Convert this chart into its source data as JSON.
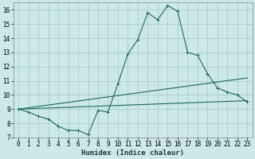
{
  "xlabel": "Humidex (Indice chaleur)",
  "xlim": [
    -0.5,
    23.5
  ],
  "ylim": [
    7,
    16.5
  ],
  "yticks": [
    7,
    8,
    9,
    10,
    11,
    12,
    13,
    14,
    15,
    16
  ],
  "xticks": [
    0,
    1,
    2,
    3,
    4,
    5,
    6,
    7,
    8,
    9,
    10,
    11,
    12,
    13,
    14,
    15,
    16,
    17,
    18,
    19,
    20,
    21,
    22,
    23
  ],
  "bg_color": "#cde8e8",
  "grid_color": "#aacccc",
  "line_color": "#1a6a5a",
  "line1_x": [
    0,
    1,
    2,
    3,
    4,
    5,
    6,
    7,
    8,
    9,
    10,
    11,
    12,
    13,
    14,
    15,
    16,
    17,
    18,
    19,
    20,
    21,
    22,
    23
  ],
  "line1_y": [
    9.0,
    8.8,
    8.5,
    8.3,
    7.8,
    7.5,
    7.5,
    7.2,
    8.9,
    8.8,
    10.8,
    12.9,
    13.9,
    15.8,
    15.3,
    16.3,
    15.9,
    13.0,
    12.8,
    11.5,
    10.5,
    10.2,
    10.0,
    9.5
  ],
  "line2_x": [
    0,
    23
  ],
  "line2_y": [
    9.0,
    9.6
  ],
  "line3_x": [
    0,
    23
  ],
  "line3_y": [
    9.0,
    11.2
  ],
  "tick_fontsize": 5.5,
  "xlabel_fontsize": 6.5
}
